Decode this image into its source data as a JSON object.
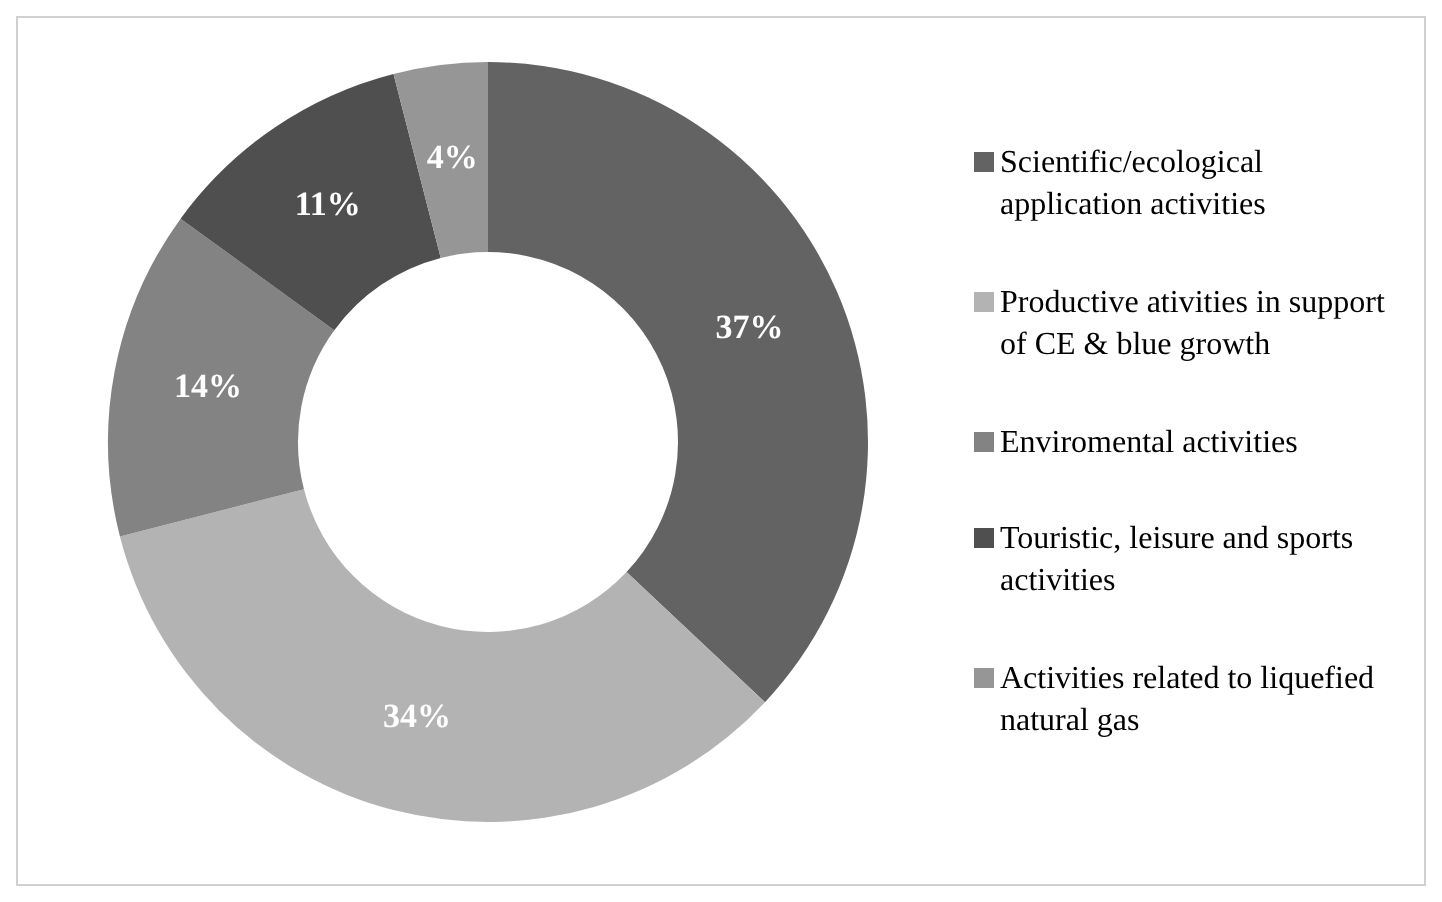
{
  "chart_data": {
    "type": "donut",
    "categories": [
      "Scientific/ecological application activities",
      "Productive ativities in support of CE & blue growth",
      "Enviromental activities",
      "Touristic, leisure and sports activities",
      "Activities related to liquefied natural gas"
    ],
    "values": [
      37,
      34,
      14,
      11,
      4
    ],
    "colors": [
      "#636363",
      "#b3b3b3",
      "#838383",
      "#4f4f4f",
      "#969696"
    ],
    "value_labels": [
      "37%",
      "34%",
      "14%",
      "11%",
      "4%"
    ],
    "legend": "right"
  }
}
